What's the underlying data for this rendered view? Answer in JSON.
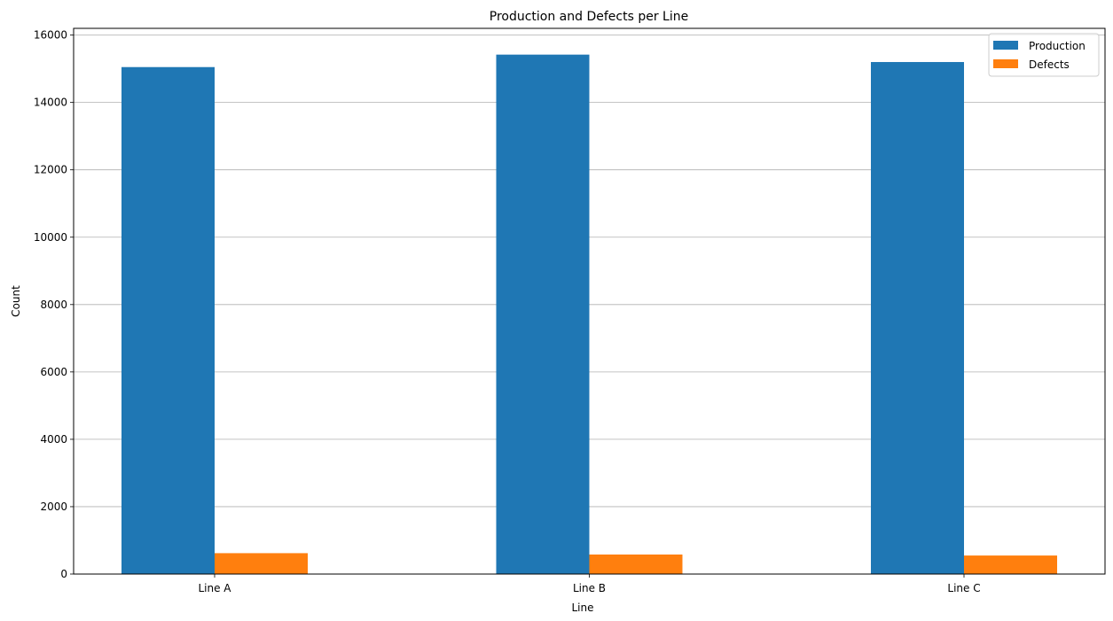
{
  "chart_data": {
    "type": "bar",
    "title": "Production and Defects per Line",
    "xlabel": "Line",
    "ylabel": "Count",
    "categories": [
      "Line A",
      "Line B",
      "Line C"
    ],
    "series": [
      {
        "name": "Production",
        "color": "#1f77b4",
        "values": [
          15050,
          15420,
          15200
        ]
      },
      {
        "name": "Defects",
        "color": "#ff7f0e",
        "values": [
          620,
          580,
          550
        ]
      }
    ],
    "ylim": [
      0,
      16200
    ],
    "yticks": [
      0,
      2000,
      4000,
      6000,
      8000,
      10000,
      12000,
      14000,
      16000
    ],
    "grid": "horizontal",
    "legend_position": "top-right"
  }
}
